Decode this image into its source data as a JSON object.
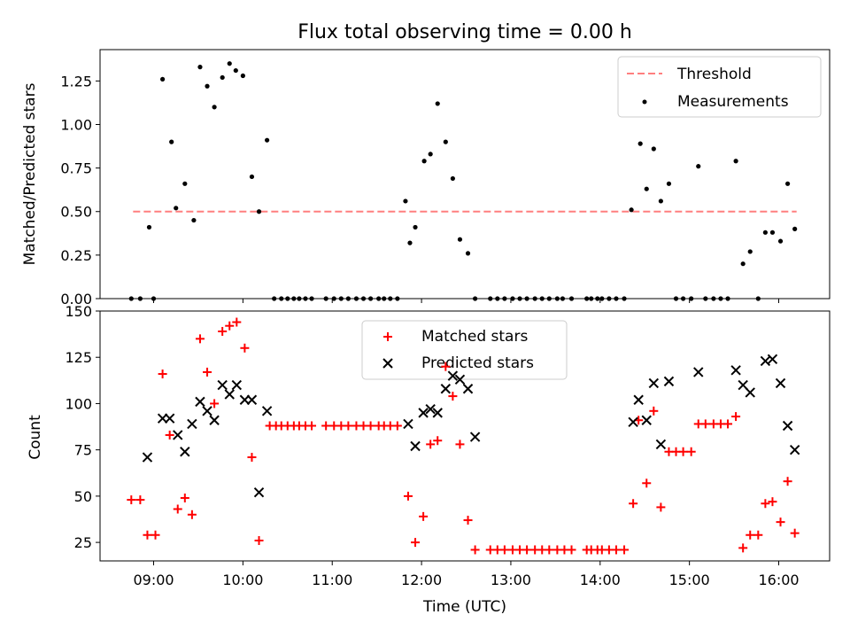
{
  "chart_data": [
    {
      "type": "scatter",
      "title": "Flux total observing time = 0.00 h",
      "xlabel": "",
      "ylabel": "Matched/Predicted stars",
      "ylim": [
        0,
        1.43
      ],
      "yticks": [
        0,
        0.25,
        0.5,
        0.75,
        1.0,
        1.25
      ],
      "ytick_labels": [
        "0.00",
        "0.25",
        "0.50",
        "0.75",
        "1.00",
        "1.25"
      ],
      "xticks_visible": false,
      "legend_position": "upper right",
      "series": [
        {
          "name": "Threshold",
          "kind": "dashed-line",
          "color": "#ff7f7f",
          "x": [
            8.77,
            16.2
          ],
          "y": [
            0.5,
            0.5
          ]
        },
        {
          "name": "Measurements",
          "kind": "scatter-dot",
          "color": "#000000",
          "x": [
            8.75,
            8.85,
            8.95,
            9.0,
            9.1,
            9.2,
            9.25,
            9.35,
            9.45,
            9.52,
            9.6,
            9.68,
            9.77,
            9.85,
            9.92,
            10.0,
            10.1,
            10.18,
            10.27,
            10.35,
            10.43,
            10.5,
            10.57,
            10.63,
            10.7,
            10.77,
            10.93,
            11.02,
            11.1,
            11.18,
            11.27,
            11.35,
            11.43,
            11.52,
            11.58,
            11.65,
            11.73,
            11.82,
            11.87,
            11.93,
            12.03,
            12.1,
            12.18,
            12.27,
            12.35,
            12.43,
            12.52,
            12.6,
            12.77,
            12.85,
            12.93,
            13.02,
            13.1,
            13.18,
            13.27,
            13.35,
            13.43,
            13.52,
            13.58,
            13.68,
            13.85,
            13.9,
            13.97,
            14.02,
            14.1,
            14.18,
            14.27,
            14.35,
            14.45,
            14.52,
            14.6,
            14.68,
            14.77,
            14.85,
            14.93,
            15.02,
            15.1,
            15.18,
            15.27,
            15.35,
            15.43,
            15.52,
            15.6,
            15.68,
            15.77,
            15.85,
            15.93,
            16.02,
            16.1,
            16.18
          ],
          "y": [
            0,
            0,
            0.41,
            0,
            1.26,
            0.9,
            0.52,
            0.66,
            0.45,
            1.33,
            1.22,
            1.1,
            1.27,
            1.35,
            1.31,
            1.28,
            0.7,
            0.5,
            0.91,
            0,
            0,
            0,
            0,
            0,
            0,
            0,
            0,
            0,
            0,
            0,
            0,
            0,
            0,
            0,
            0,
            0,
            0,
            0.56,
            0.32,
            0.41,
            0.79,
            0.83,
            1.12,
            0.9,
            0.69,
            0.34,
            0.26,
            0,
            0,
            0,
            0,
            0,
            0,
            0,
            0,
            0,
            0,
            0,
            0,
            0,
            0,
            0,
            0,
            0,
            0,
            0,
            0,
            0.51,
            0.89,
            0.63,
            0.86,
            0.56,
            0.66,
            0,
            0,
            0,
            0.76,
            0,
            0,
            0,
            0,
            0.79,
            0.2,
            0.27,
            0,
            0.38,
            0.38,
            0.33,
            0.66,
            0.4
          ]
        }
      ]
    },
    {
      "type": "scatter",
      "title": "",
      "xlabel": "Time (UTC)",
      "ylabel": "Count",
      "xlim": [
        8.4,
        16.57
      ],
      "ylim": [
        15,
        150
      ],
      "xticks": [
        9,
        10,
        11,
        12,
        13,
        14,
        15,
        16
      ],
      "xtick_labels": [
        "09:00",
        "10:00",
        "11:00",
        "12:00",
        "13:00",
        "14:00",
        "15:00",
        "16:00"
      ],
      "yticks": [
        25,
        50,
        75,
        100,
        125,
        150
      ],
      "ytick_labels": [
        "25",
        "50",
        "75",
        "100",
        "125",
        "150"
      ],
      "legend_position": "upper center",
      "series": [
        {
          "name": "Matched stars",
          "marker": "plus",
          "color": "#ff0000",
          "x": [
            8.75,
            8.85,
            8.93,
            9.02,
            9.1,
            9.18,
            9.27,
            9.35,
            9.43,
            9.52,
            9.6,
            9.68,
            9.77,
            9.85,
            9.93,
            10.02,
            10.1,
            10.18,
            10.3,
            10.37,
            10.43,
            10.5,
            10.57,
            10.63,
            10.7,
            10.77,
            10.93,
            11.02,
            11.1,
            11.18,
            11.27,
            11.35,
            11.43,
            11.52,
            11.58,
            11.65,
            11.73,
            11.85,
            11.93,
            12.02,
            12.1,
            12.18,
            12.27,
            12.35,
            12.43,
            12.52,
            12.6,
            12.77,
            12.85,
            12.93,
            13.02,
            13.1,
            13.18,
            13.27,
            13.35,
            13.43,
            13.52,
            13.6,
            13.68,
            13.85,
            13.9,
            13.97,
            14.02,
            14.1,
            14.18,
            14.27,
            14.37,
            14.43,
            14.52,
            14.6,
            14.68,
            14.77,
            14.85,
            14.93,
            15.02,
            15.1,
            15.18,
            15.27,
            15.35,
            15.43,
            15.52,
            15.6,
            15.68,
            15.77,
            15.85,
            15.93,
            16.02,
            16.1,
            16.18
          ],
          "y": [
            48,
            48,
            29,
            29,
            116,
            83,
            43,
            49,
            40,
            135,
            117,
            100,
            139,
            142,
            144,
            130,
            71,
            26,
            88,
            88,
            88,
            88,
            88,
            88,
            88,
            88,
            88,
            88,
            88,
            88,
            88,
            88,
            88,
            88,
            88,
            88,
            88,
            50,
            25,
            39,
            78,
            80,
            120,
            104,
            78,
            37,
            21,
            21,
            21,
            21,
            21,
            21,
            21,
            21,
            21,
            21,
            21,
            21,
            21,
            21,
            21,
            21,
            21,
            21,
            21,
            21,
            46,
            91,
            57,
            96,
            44,
            74,
            74,
            74,
            74,
            89,
            89,
            89,
            89,
            89,
            93,
            22,
            29,
            29,
            46,
            47,
            36,
            58,
            30
          ]
        },
        {
          "name": "Predicted stars",
          "marker": "x",
          "color": "#000000",
          "x": [
            8.93,
            9.1,
            9.18,
            9.27,
            9.35,
            9.43,
            9.52,
            9.6,
            9.68,
            9.77,
            9.85,
            9.93,
            10.02,
            10.1,
            10.18,
            10.27,
            11.85,
            11.93,
            12.02,
            12.1,
            12.18,
            12.27,
            12.35,
            12.43,
            12.52,
            12.6,
            14.37,
            14.43,
            14.52,
            14.6,
            14.68,
            14.77,
            15.1,
            15.52,
            15.6,
            15.68,
            15.85,
            15.93,
            16.02,
            16.1,
            16.18
          ],
          "y": [
            71,
            92,
            92,
            83,
            74,
            89,
            101,
            96,
            91,
            110,
            105,
            110,
            102,
            102,
            52,
            96,
            89,
            77,
            95,
            97,
            95,
            108,
            115,
            113,
            108,
            82,
            90,
            102,
            91,
            111,
            78,
            112,
            117,
            118,
            110,
            106,
            123,
            124,
            111,
            88,
            75
          ]
        }
      ]
    }
  ]
}
